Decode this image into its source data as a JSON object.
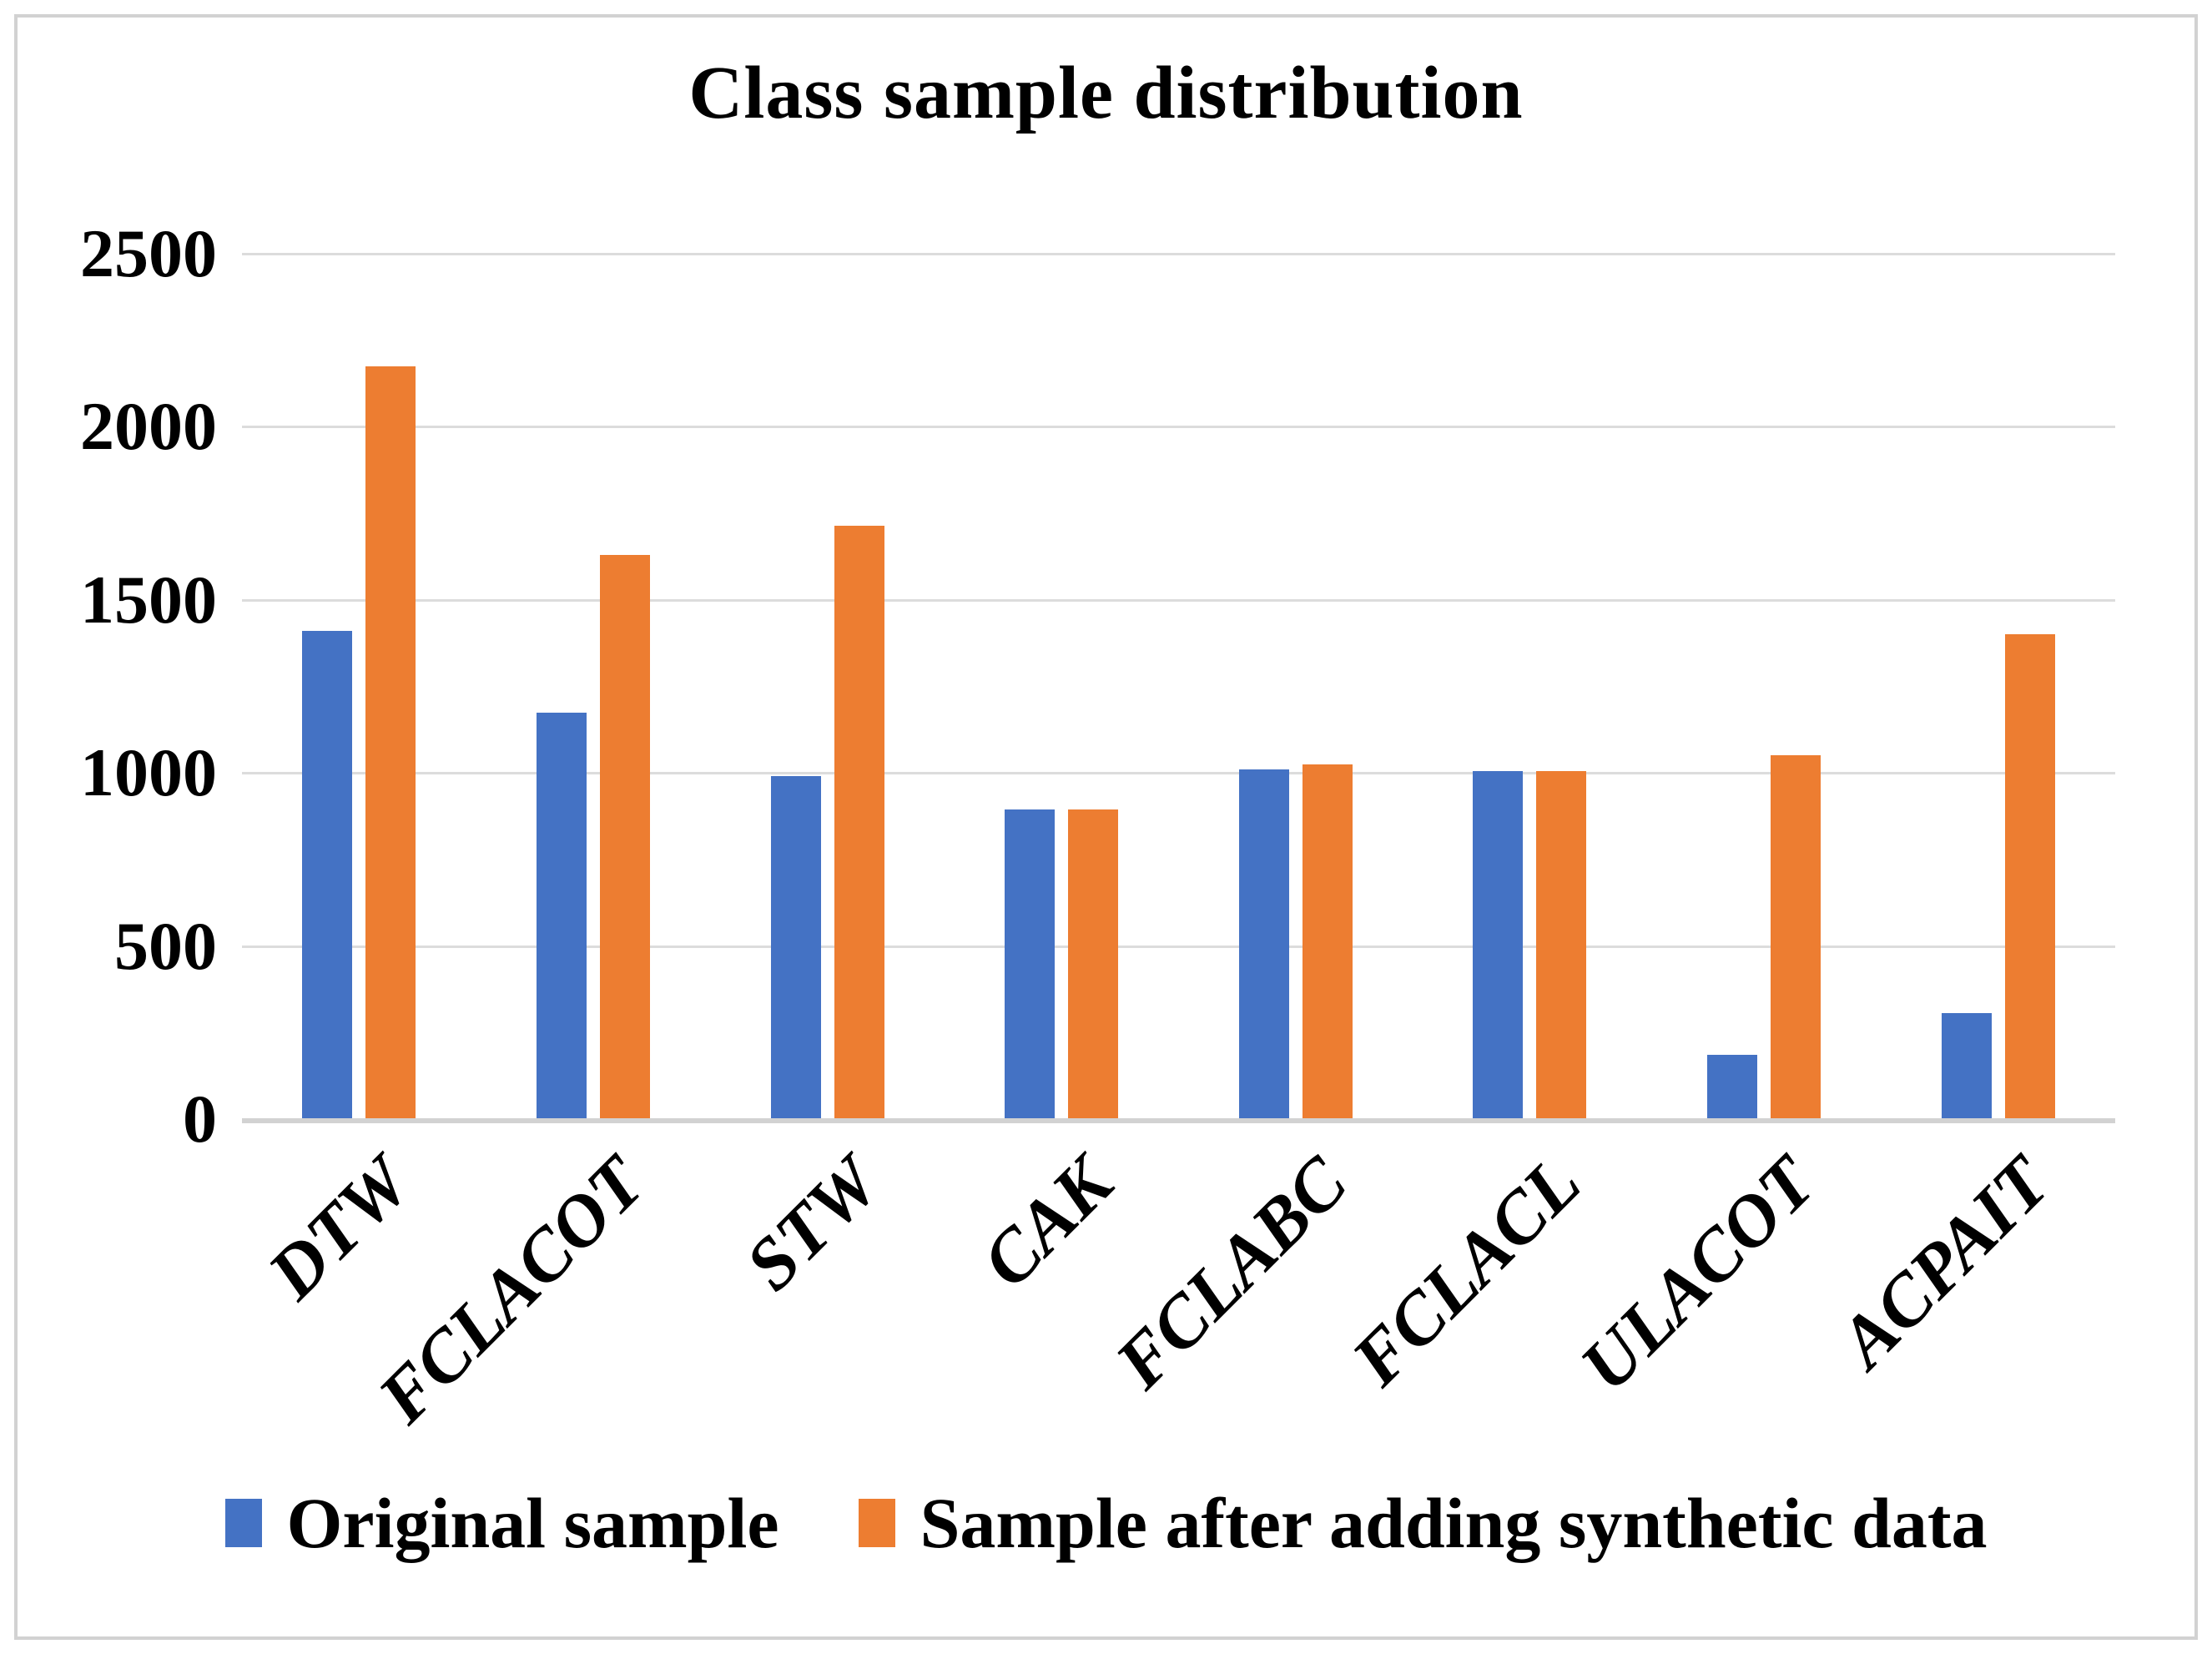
{
  "chart_data": {
    "type": "bar",
    "title": "Class sample distribution",
    "categories": [
      "DTW",
      "FCLACOT",
      "STW",
      "CAK",
      "FCLABC",
      "FCLACL",
      "ULACOT",
      "ACPAIT"
    ],
    "series": [
      {
        "name": "Original sample",
        "color": "#4472C4",
        "values": [
          1410,
          1175,
          990,
          895,
          1010,
          1005,
          185,
          305
        ]
      },
      {
        "name": "Sample after adding synthetic data",
        "color": "#ED7D31",
        "values": [
          2175,
          1630,
          1715,
          895,
          1025,
          1005,
          1050,
          1400
        ]
      }
    ],
    "xlabel": "",
    "ylabel": "",
    "ylim": [
      0,
      2500
    ],
    "ytick_step": 500,
    "ytick_labels": [
      "0",
      "500",
      "1000",
      "1500",
      "2000",
      "2500"
    ],
    "grid": "on",
    "legend_position": "bottom",
    "colors": {
      "gridline": "#dcdcdc",
      "axis_line": "#d2d2d2",
      "text": "#000000",
      "background": "#ffffff",
      "frame_border": "#d2d2d2"
    }
  }
}
